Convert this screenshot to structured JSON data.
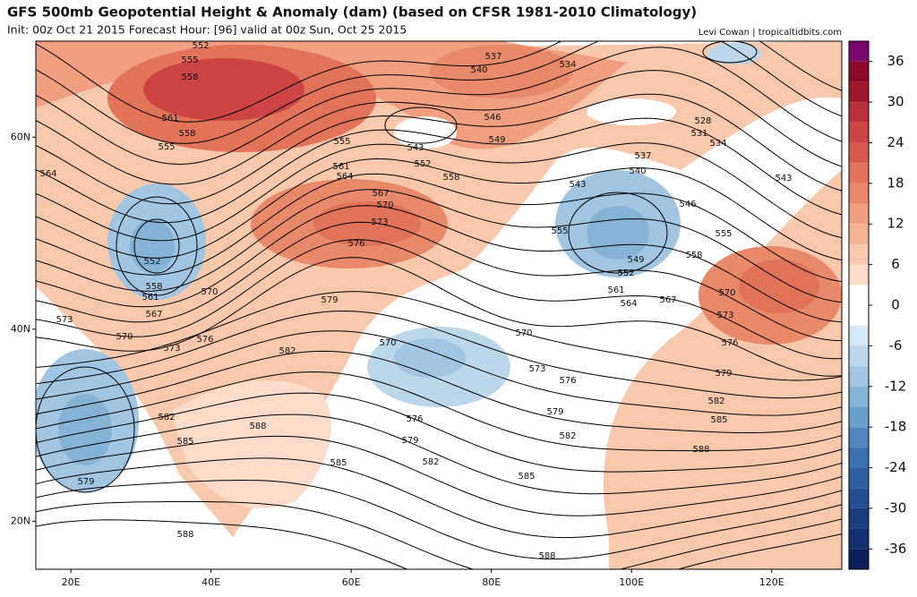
{
  "map": {
    "title": "GFS 500mb Geopotential Height & Anomaly (dam) (based on CFSR 1981-2010 Climatology)",
    "subtitle": "Init: 00z Oct 21 2015   Forecast Hour: [96]   valid at 00z Sun, Oct 25 2015",
    "credit": "Levi Cowan | tropicaltidbits.com",
    "lonlim": [
      15,
      130
    ],
    "latlim": [
      15,
      70
    ],
    "lon_ticks": [
      {
        "value": 20,
        "label": "20E"
      },
      {
        "value": 40,
        "label": "40E"
      },
      {
        "value": 60,
        "label": "60E"
      },
      {
        "value": 80,
        "label": "80E"
      },
      {
        "value": 100,
        "label": "100E"
      },
      {
        "value": 120,
        "label": "120E"
      }
    ],
    "lat_ticks": [
      {
        "value": 20,
        "label": "20N"
      },
      {
        "value": 40,
        "label": "40N"
      },
      {
        "value": 60,
        "label": "60N"
      }
    ],
    "colorbar": {
      "lim": [
        -39,
        39
      ],
      "ticks": [
        36,
        30,
        24,
        18,
        12,
        6,
        0,
        -6,
        -12,
        -18,
        -24,
        -30,
        -36
      ],
      "colors": [
        "#7b0a6e",
        "#8b0a2a",
        "#a01830",
        "#b8303a",
        "#cc4444",
        "#d85c4e",
        "#e07358",
        "#e88a6a",
        "#f0a080",
        "#f5b595",
        "#f8c8ad",
        "#fbdccb",
        "#ffffff",
        "#ffffff",
        "#d6e6f2",
        "#bcd6ea",
        "#a2c6e1",
        "#85b3d6",
        "#6a9fcb",
        "#5088be",
        "#3b72b0",
        "#2e5fa0",
        "#244e8f",
        "#1b3e7e",
        "#14306e",
        "#0c1f5c"
      ]
    },
    "contour_labels": [
      552,
      555,
      558,
      561,
      558,
      555,
      564,
      552,
      558,
      561,
      567,
      570,
      573,
      570,
      573,
      576,
      582,
      579,
      576,
      573,
      570,
      567,
      564,
      561,
      555,
      552,
      543,
      549,
      546,
      540,
      537,
      534,
      528,
      531,
      534,
      537,
      540,
      543,
      546,
      555,
      549,
      552,
      561,
      564,
      567,
      558,
      570,
      573,
      576,
      579,
      582,
      585,
      588,
      582,
      579,
      576,
      570,
      585,
      588,
      582,
      585,
      579,
      588,
      558,
      555,
      543,
      570,
      573,
      576,
      579,
      582,
      585,
      588
    ]
  }
}
